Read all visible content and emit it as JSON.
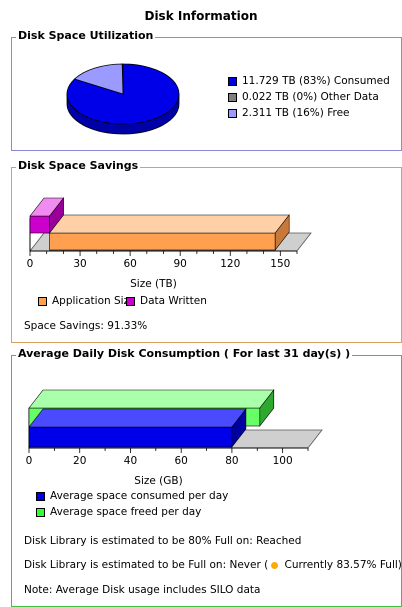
{
  "page_title": "Disk Information",
  "utilization": {
    "title": "Disk Space Utilization",
    "legend": [
      {
        "label": "11.729 TB (83%)  Consumed",
        "color": "#0000e8"
      },
      {
        "label": "0.022 TB (0%)  Other Data",
        "color": "#808080"
      },
      {
        "label": "2.311 TB (16%)  Free",
        "color": "#9b9bff"
      }
    ]
  },
  "savings": {
    "title": "Disk Space Savings",
    "legend": [
      {
        "label": "Application Size",
        "color": "#ffa050"
      },
      {
        "label": "Data Written",
        "color": "#cc00cc"
      }
    ],
    "summary": "Space Savings: 91.33%"
  },
  "consumption": {
    "title": "Average Daily Disk Consumption ( For last 31 day(s) )",
    "legend": [
      {
        "label": "Average space consumed per day",
        "color": "#0000e8"
      },
      {
        "label": "Average space freed per day",
        "color": "#33ff33"
      }
    ],
    "line_80": "Disk Library is estimated to be 80% Full on: Reached",
    "line_full_prefix": "Disk Library is estimated to be Full on: Never (",
    "line_full_suffix": " Currently 83.57% Full)",
    "status_dot_color": "#ffaa00",
    "note": "Note: Average Disk usage includes SILO data"
  },
  "chart_data": [
    {
      "type": "pie",
      "title": "Disk Space Utilization",
      "labels": [
        "Consumed",
        "Other Data",
        "Free"
      ],
      "values": [
        11.729,
        0.022,
        2.311
      ],
      "percent": [
        83,
        0,
        16
      ],
      "unit": "TB"
    },
    {
      "type": "bar",
      "orientation": "horizontal",
      "stacked": true,
      "xlabel": "Size (TB)",
      "xlim": [
        0,
        160
      ],
      "xticks": [
        0,
        30,
        60,
        90,
        120,
        150
      ],
      "series": [
        {
          "name": "Data Written",
          "values": [
            11.73
          ]
        },
        {
          "name": "Application Size",
          "values": [
            135.2
          ]
        }
      ],
      "legend": "bottom"
    },
    {
      "type": "bar",
      "orientation": "horizontal",
      "xlabel": "Size (GB)",
      "xlim": [
        0,
        110
      ],
      "xticks": [
        0,
        20,
        40,
        60,
        80,
        100
      ],
      "series": [
        {
          "name": "Average space consumed per day",
          "values": [
            80
          ]
        },
        {
          "name": "Average space freed per day",
          "values": [
            91
          ]
        }
      ],
      "legend": "bottom"
    }
  ]
}
